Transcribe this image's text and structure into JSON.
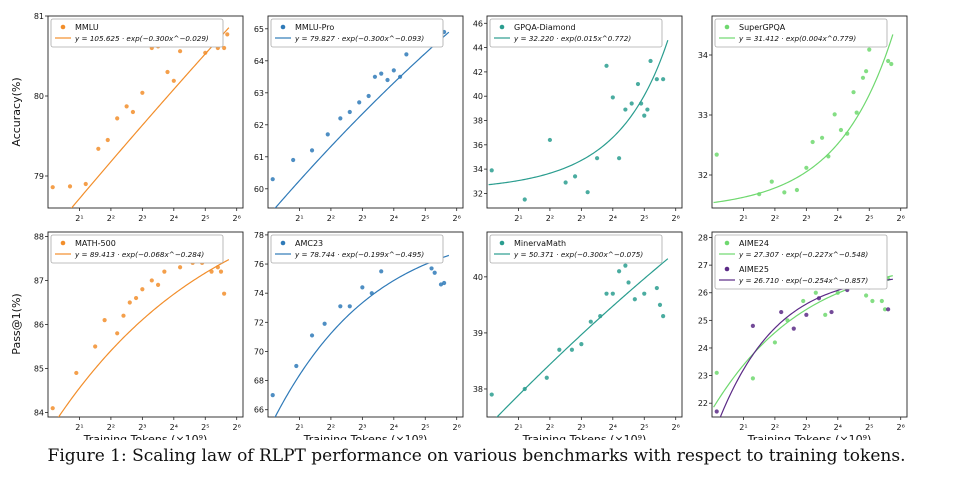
{
  "colors": {
    "orange": "#f28e2b",
    "blue": "#2f7ab8",
    "teal": "#2a9d8f",
    "green": "#6fd86f",
    "purple": "#5b2a86"
  },
  "labels": {
    "ylabel_top": "Accuracy(%)",
    "ylabel_bottom": "Pass@1(%)",
    "xlabel": "Training Tokens (×10⁹)",
    "x_ticks": [
      "2¹",
      "2²",
      "2³",
      "2⁴",
      "2⁵",
      "2⁶"
    ]
  },
  "caption": "Figure 1: Scaling law of RLPT performance on various benchmarks with respect to training tokens.",
  "chart_data": [
    {
      "type": "scatter",
      "title": "MMLU",
      "ylim": [
        78.6,
        81.0
      ],
      "yticks": [
        79,
        80,
        81
      ],
      "color": "orange",
      "series": [
        {
          "name": "MMLU",
          "fit": "y = 105.625 · exp(−0.300x^−0.029)",
          "fit_a": 105.625,
          "fit_b": -0.3,
          "fit_c": -0.029,
          "x": [
            0.15,
            0.7,
            1.2,
            1.6,
            1.9,
            2.2,
            2.5,
            2.7,
            3.0,
            3.3,
            3.5,
            3.8,
            4.0,
            4.2,
            4.4,
            4.6,
            4.8,
            5.0,
            5.1,
            5.3,
            5.4,
            5.5,
            5.6,
            5.7
          ],
          "y": [
            78.86,
            78.87,
            78.9,
            79.34,
            79.45,
            79.72,
            79.87,
            79.8,
            80.04,
            80.6,
            80.62,
            80.3,
            80.19,
            80.56,
            80.65,
            80.87,
            80.68,
            80.54,
            80.74,
            80.88,
            80.6,
            80.7,
            80.6,
            80.77
          ]
        }
      ]
    },
    {
      "type": "scatter",
      "title": "MMLU-Pro",
      "ylim": [
        59.4,
        65.4
      ],
      "yticks": [
        60,
        61,
        62,
        63,
        64,
        65
      ],
      "color": "blue",
      "series": [
        {
          "name": "MMLU-Pro",
          "fit": "y = 79.827 · exp(−0.300x^−0.093)",
          "fit_a": 79.827,
          "fit_b": -0.3,
          "fit_c": -0.093,
          "x": [
            0.15,
            0.8,
            1.4,
            1.9,
            2.3,
            2.6,
            2.9,
            3.2,
            3.4,
            3.6,
            3.8,
            4.0,
            4.2,
            4.4,
            4.6,
            4.8,
            5.0,
            5.2,
            5.3,
            5.4,
            5.5,
            5.6
          ],
          "y": [
            60.3,
            60.9,
            61.2,
            61.7,
            62.2,
            62.4,
            62.7,
            62.9,
            63.5,
            63.6,
            63.4,
            63.7,
            63.5,
            64.2,
            64.5,
            64.7,
            65.0,
            64.6,
            65.0,
            65.1,
            65.0,
            64.9
          ]
        }
      ]
    },
    {
      "type": "scatter",
      "title": "GPQA-Diamond",
      "ylim": [
        30.8,
        46.6
      ],
      "yticks": [
        32,
        34,
        36,
        38,
        40,
        42,
        44,
        46
      ],
      "color": "teal",
      "series": [
        {
          "name": "GPQA-Diamond",
          "fit": "y = 32.220 · exp(0.015x^0.772)",
          "fit_a": 32.22,
          "fit_b": 0.015,
          "fit_c": 0.772,
          "x": [
            0.15,
            1.2,
            2.0,
            2.5,
            2.8,
            3.2,
            3.5,
            3.8,
            4.0,
            4.2,
            4.4,
            4.6,
            4.8,
            4.9,
            5.0,
            5.1,
            5.2,
            5.3,
            5.4,
            5.5,
            5.6
          ],
          "y": [
            33.9,
            31.5,
            36.4,
            32.9,
            33.4,
            32.1,
            34.9,
            42.5,
            39.9,
            34.9,
            38.9,
            39.4,
            41.0,
            39.4,
            38.4,
            38.9,
            42.9,
            45.4,
            41.4,
            44.4,
            41.4
          ]
        }
      ]
    },
    {
      "type": "scatter",
      "title": "SuperGPQA",
      "ylim": [
        31.45,
        34.65
      ],
      "yticks": [
        32,
        33,
        34
      ],
      "color": "green",
      "series": [
        {
          "name": "SuperGPQA",
          "fit": "y = 31.412 · exp(0.004x^0.779)",
          "fit_a": 31.412,
          "fit_b": 0.004,
          "fit_c": 0.779,
          "x": [
            0.15,
            1.5,
            1.9,
            2.3,
            2.7,
            3.0,
            3.2,
            3.5,
            3.7,
            3.9,
            4.1,
            4.3,
            4.5,
            4.6,
            4.8,
            4.9,
            5.0,
            5.1,
            5.2,
            5.3,
            5.4,
            5.5,
            5.6,
            5.7
          ],
          "y": [
            32.34,
            31.68,
            31.89,
            31.71,
            31.75,
            32.12,
            32.55,
            32.62,
            32.31,
            33.01,
            32.75,
            32.69,
            33.38,
            33.04,
            33.62,
            33.73,
            34.09,
            34.3,
            34.46,
            34.43,
            34.32,
            34.22,
            33.9,
            33.85
          ]
        }
      ]
    },
    {
      "type": "scatter",
      "title": "MATH-500",
      "ylim": [
        83.9,
        88.1
      ],
      "yticks": [
        84,
        85,
        86,
        87,
        88
      ],
      "color": "orange",
      "series": [
        {
          "name": "MATH-500",
          "fit": "y = 89.413 · exp(−0.068x^−0.284)",
          "fit_a": 89.413,
          "fit_b": -0.068,
          "fit_c": -0.284,
          "x": [
            0.15,
            0.9,
            1.5,
            1.8,
            2.2,
            2.4,
            2.6,
            2.8,
            3.0,
            3.3,
            3.5,
            3.7,
            4.0,
            4.2,
            4.4,
            4.6,
            4.8,
            4.9,
            5.0,
            5.1,
            5.2,
            5.3,
            5.4,
            5.5,
            5.6
          ],
          "y": [
            84.1,
            84.9,
            85.5,
            86.1,
            85.8,
            86.2,
            86.5,
            86.6,
            86.8,
            87.0,
            86.9,
            87.2,
            87.5,
            87.3,
            87.6,
            87.4,
            87.5,
            87.4,
            87.6,
            87.9,
            87.2,
            87.5,
            87.3,
            87.2,
            86.7
          ]
        }
      ]
    },
    {
      "type": "scatter",
      "title": "AMC23",
      "ylim": [
        65.5,
        78.2
      ],
      "yticks": [
        66,
        68,
        70,
        72,
        74,
        76,
        78
      ],
      "color": "blue",
      "series": [
        {
          "name": "AMC23",
          "fit": "y = 78.744 · exp(−0.199x^−0.495)",
          "fit_a": 78.744,
          "fit_b": -0.199,
          "fit_c": -0.495,
          "x": [
            0.15,
            0.9,
            1.4,
            1.8,
            2.3,
            2.6,
            3.0,
            3.3,
            3.6,
            3.9,
            4.1,
            4.3,
            4.5,
            4.7,
            4.8,
            4.9,
            5.0,
            5.1,
            5.2,
            5.3,
            5.4,
            5.5,
            5.6
          ],
          "y": [
            67.0,
            69.0,
            71.1,
            71.9,
            73.1,
            73.1,
            74.4,
            74.0,
            75.5,
            76.3,
            77.5,
            76.8,
            77.4,
            77.2,
            76.8,
            77.6,
            77.2,
            76.7,
            75.7,
            75.4,
            76.2,
            74.6,
            74.7
          ]
        }
      ]
    },
    {
      "type": "scatter",
      "title": "MinervaMath",
      "ylim": [
        37.5,
        40.8
      ],
      "yticks": [
        38,
        39,
        40
      ],
      "color": "teal",
      "series": [
        {
          "name": "MinervaMath",
          "fit": "y = 50.371 · exp(−0.300x^−0.075)",
          "fit_a": 50.371,
          "fit_b": -0.3,
          "fit_c": -0.075,
          "x": [
            0.15,
            1.2,
            1.9,
            2.3,
            2.7,
            3.0,
            3.3,
            3.6,
            3.8,
            4.0,
            4.2,
            4.4,
            4.5,
            4.7,
            4.9,
            5.0,
            5.1,
            5.2,
            5.3,
            5.4,
            5.5,
            5.6
          ],
          "y": [
            37.9,
            38.0,
            38.2,
            38.7,
            38.7,
            38.8,
            39.2,
            39.3,
            39.7,
            39.7,
            40.1,
            40.2,
            39.9,
            39.6,
            40.3,
            39.7,
            40.5,
            40.7,
            40.6,
            39.8,
            39.5,
            39.3
          ]
        }
      ]
    },
    {
      "type": "scatter",
      "title": "AIME24 / AIME25",
      "ylim": [
        21.5,
        28.2
      ],
      "yticks": [
        22,
        23,
        24,
        25,
        26,
        27,
        28
      ],
      "series": [
        {
          "name": "AIME24",
          "color": "green",
          "fit": "y = 27.307 · exp(−0.227x^−0.548)",
          "fit_a": 27.307,
          "fit_b": -0.227,
          "fit_c": -0.548,
          "x": [
            0.15,
            1.3,
            2.0,
            2.4,
            2.9,
            3.3,
            3.6,
            4.0,
            4.3,
            4.5,
            4.7,
            4.9,
            5.0,
            5.1,
            5.2,
            5.3,
            5.4,
            5.5,
            5.6
          ],
          "y": [
            23.1,
            22.9,
            24.2,
            25.0,
            25.7,
            26.0,
            25.2,
            26.0,
            26.3,
            27.9,
            26.5,
            25.9,
            27.0,
            25.7,
            26.5,
            27.1,
            25.7,
            25.4,
            26.5
          ]
        },
        {
          "name": "AIME25",
          "color": "purple",
          "fit": "y = 26.710 · exp(−0.254x^−0.857)",
          "fit_a": 26.71,
          "fit_b": -0.254,
          "fit_c": -0.857,
          "x": [
            0.15,
            1.3,
            2.2,
            2.6,
            3.0,
            3.4,
            3.8,
            4.1,
            4.3,
            4.5,
            4.7,
            4.9,
            5.0,
            5.1,
            5.2,
            5.3,
            5.4,
            5.5,
            5.6
          ],
          "y": [
            21.7,
            24.8,
            25.3,
            24.7,
            25.2,
            25.8,
            25.3,
            26.2,
            26.1,
            27.1,
            27.3,
            26.8,
            26.2,
            27.8,
            26.3,
            26.6,
            26.6,
            26.3,
            25.4
          ]
        }
      ]
    }
  ]
}
